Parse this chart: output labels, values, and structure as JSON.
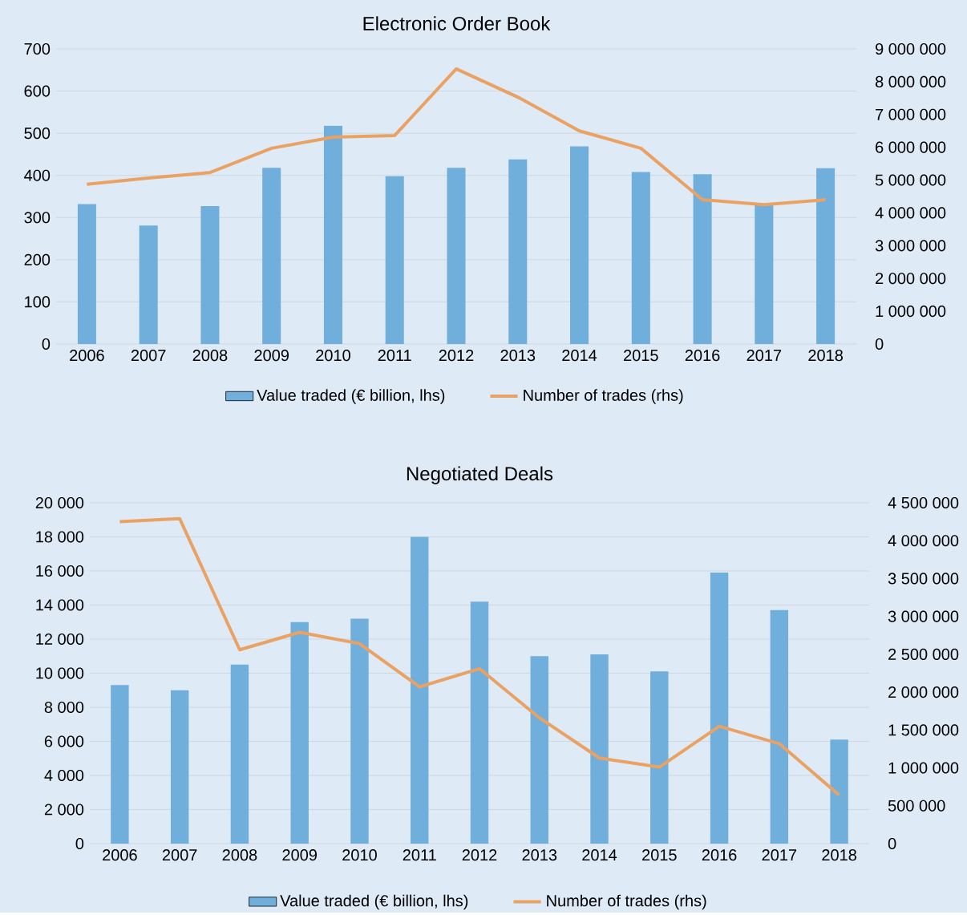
{
  "chart_data": [
    {
      "type": "bar",
      "title": "Electronic Order Book",
      "categories": [
        "2006",
        "2007",
        "2008",
        "2009",
        "2010",
        "2011",
        "2012",
        "2013",
        "2014",
        "2015",
        "2016",
        "2017",
        "2018"
      ],
      "series": [
        {
          "name": "Value traded (€ billion, lhs)",
          "color": "#70aedb",
          "values": [
            332,
            281,
            327,
            418,
            518,
            398,
            418,
            438,
            469,
            408,
            403,
            329,
            417
          ]
        },
        {
          "name": "Number of trades (rhs)",
          "color": "#e9a263",
          "type": "line",
          "axis": "y2",
          "values": [
            4870000,
            5060000,
            5230000,
            5970000,
            6310000,
            6360000,
            8390000,
            7530000,
            6500000,
            5970000,
            4400000,
            4250000,
            4400000
          ]
        }
      ],
      "ylim": [
        0,
        700
      ],
      "yticks": [
        0,
        100,
        200,
        300,
        400,
        500,
        600,
        700
      ],
      "y2lim": [
        0,
        9000000
      ],
      "y2ticks": [
        0,
        {
          "value": 1000000,
          "label": "1 000 000"
        },
        {
          "value": 2000000,
          "label": "2 000 000"
        },
        {
          "value": 3000000,
          "label": "3 000 000"
        },
        {
          "value": 4000000,
          "label": "4 000 000"
        },
        {
          "value": 5000000,
          "label": "5 000 000"
        },
        {
          "value": 6000000,
          "label": "6 000 000"
        },
        {
          "value": 7000000,
          "label": "7 000 000"
        },
        {
          "value": 8000000,
          "label": "8 000 000"
        },
        {
          "value": 9000000,
          "label": "9 000 000"
        }
      ],
      "grid": "y",
      "legend": "bottom"
    },
    {
      "type": "bar",
      "title": "Negotiated Deals",
      "categories": [
        "2006",
        "2007",
        "2008",
        "2009",
        "2010",
        "2011",
        "2012",
        "2013",
        "2014",
        "2015",
        "2016",
        "2017",
        "2018"
      ],
      "series": [
        {
          "name": "Value traded (€ billion, lhs)",
          "color": "#70aedb",
          "values": [
            9300,
            9000,
            10500,
            13000,
            13200,
            18000,
            14200,
            11000,
            11100,
            10100,
            15900,
            13700,
            6100
          ]
        },
        {
          "name": "Number of trades (rhs)",
          "color": "#e9a263",
          "type": "line",
          "axis": "y2",
          "values": [
            4250000,
            4290000,
            2560000,
            2790000,
            2640000,
            2070000,
            2310000,
            1660000,
            1130000,
            1010000,
            1550000,
            1320000,
            640000
          ]
        }
      ],
      "ylim": [
        0,
        20000
      ],
      "yticks": [
        0,
        {
          "value": 2000,
          "label": "2 000"
        },
        {
          "value": 4000,
          "label": "4 000"
        },
        {
          "value": 6000,
          "label": "6 000"
        },
        {
          "value": 8000,
          "label": "8 000"
        },
        {
          "value": 10000,
          "label": "10 000"
        },
        {
          "value": 12000,
          "label": "12 000"
        },
        {
          "value": 14000,
          "label": "14 000"
        },
        {
          "value": 16000,
          "label": "16 000"
        },
        {
          "value": 18000,
          "label": "18 000"
        },
        {
          "value": 20000,
          "label": "20 000"
        }
      ],
      "y2lim": [
        0,
        4500000
      ],
      "y2ticks": [
        0,
        {
          "value": 500000,
          "label": "500 000"
        },
        {
          "value": 1000000,
          "label": "1 000 000"
        },
        {
          "value": 1500000,
          "label": "1 500 000"
        },
        {
          "value": 2000000,
          "label": "2 000 000"
        },
        {
          "value": 2500000,
          "label": "2 500 000"
        },
        {
          "value": 3000000,
          "label": "3 000 000"
        },
        {
          "value": 3500000,
          "label": "3 500 000"
        },
        {
          "value": 4000000,
          "label": "4 000 000"
        },
        {
          "value": 4500000,
          "label": "4 500 000"
        }
      ],
      "grid": "y",
      "legend": "bottom"
    }
  ]
}
